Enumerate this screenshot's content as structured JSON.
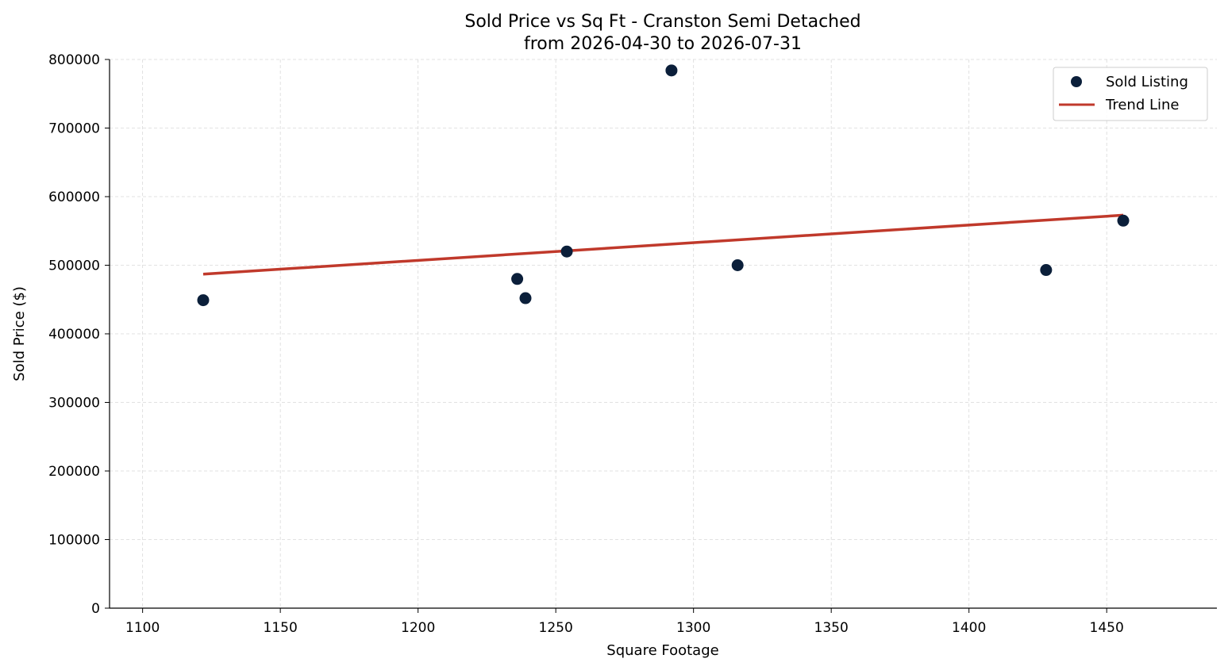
{
  "chart_data": {
    "type": "scatter",
    "title_lines": [
      "Sold Price vs Sq Ft - Cranston Semi Detached",
      "from 2026-04-30 to 2026-07-31"
    ],
    "xlabel": "Square Footage",
    "ylabel": "Sold Price ($)",
    "xlim": [
      1088,
      1490
    ],
    "ylim": [
      0,
      800000
    ],
    "xticks": [
      1100,
      1150,
      1200,
      1250,
      1300,
      1350,
      1400,
      1450
    ],
    "yticks": [
      0,
      100000,
      200000,
      300000,
      400000,
      500000,
      600000,
      700000,
      800000
    ],
    "grid": true,
    "legend_position": "top-right",
    "series": [
      {
        "name": "Sold Listing",
        "kind": "scatter",
        "color": "#0b1f3a",
        "points": [
          {
            "x": 1122,
            "y": 449000
          },
          {
            "x": 1236,
            "y": 480000
          },
          {
            "x": 1239,
            "y": 452000
          },
          {
            "x": 1254,
            "y": 520000
          },
          {
            "x": 1292,
            "y": 784000
          },
          {
            "x": 1316,
            "y": 500000
          },
          {
            "x": 1428,
            "y": 493000
          },
          {
            "x": 1456,
            "y": 565000
          }
        ]
      },
      {
        "name": "Trend Line",
        "kind": "line",
        "color": "#c0392b",
        "points": [
          {
            "x": 1122,
            "y": 487000
          },
          {
            "x": 1456,
            "y": 573000
          }
        ]
      }
    ]
  }
}
